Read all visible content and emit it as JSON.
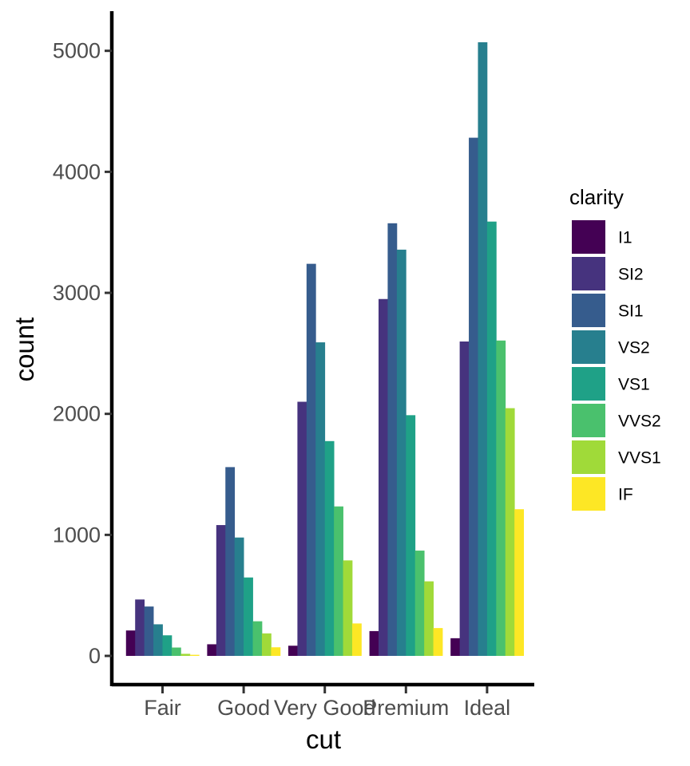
{
  "chart_data": {
    "type": "bar",
    "barmode": "dodge",
    "xlabel": "cut",
    "ylabel": "count",
    "categories": [
      "Fair",
      "Good",
      "Very Good",
      "Premium",
      "Ideal"
    ],
    "ylim": [
      0,
      5300
    ],
    "yticks": [
      0,
      1000,
      2000,
      3000,
      4000,
      5000
    ],
    "grid": false,
    "legend": {
      "title": "clarity",
      "position": "right"
    },
    "series": [
      {
        "name": "I1",
        "color": "#440154",
        "values": [
          210,
          96,
          84,
          205,
          146
        ]
      },
      {
        "name": "SI2",
        "color": "#46337E",
        "values": [
          466,
          1081,
          2100,
          2949,
          2598
        ]
      },
      {
        "name": "SI1",
        "color": "#365C8D",
        "values": [
          408,
          1560,
          3240,
          3575,
          4282
        ]
      },
      {
        "name": "VS2",
        "color": "#277F8E",
        "values": [
          261,
          978,
          2591,
          3357,
          5071
        ]
      },
      {
        "name": "VS1",
        "color": "#1FA187",
        "values": [
          170,
          648,
          1775,
          1989,
          3589
        ]
      },
      {
        "name": "VVS2",
        "color": "#4AC16D",
        "values": [
          69,
          286,
          1235,
          870,
          2606
        ]
      },
      {
        "name": "VVS1",
        "color": "#A0DA39",
        "values": [
          17,
          186,
          789,
          616,
          2047
        ]
      },
      {
        "name": "IF",
        "color": "#FDE725",
        "values": [
          9,
          71,
          268,
          230,
          1212
        ]
      }
    ]
  }
}
